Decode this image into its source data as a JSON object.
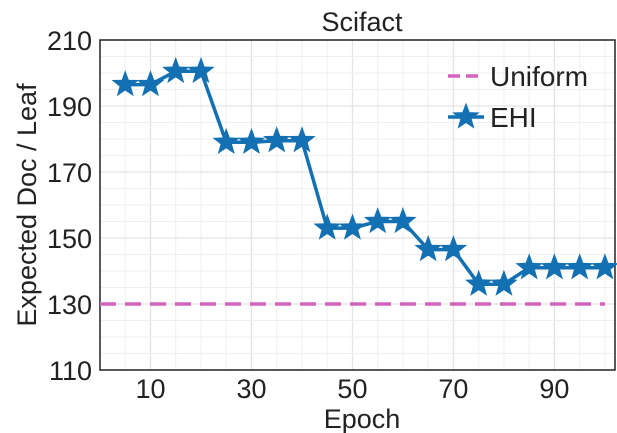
{
  "chart_data": {
    "type": "line",
    "title": "Scifact",
    "xlabel": "Epoch",
    "ylabel": "Expected Doc / Leaf",
    "xlim": [
      0,
      102
    ],
    "ylim": [
      110,
      210
    ],
    "xticks": [
      10,
      30,
      50,
      70,
      90
    ],
    "yticks": [
      110,
      130,
      150,
      170,
      190,
      210
    ],
    "x_tick_labels": [
      "10",
      "30",
      "50",
      "70",
      "90"
    ],
    "y_tick_labels": [
      "110",
      "130",
      "150",
      "170",
      "190",
      "210"
    ],
    "grid": true,
    "legend_position": "top-right",
    "series": [
      {
        "name": "Uniform",
        "style": "dashed",
        "marker": "none",
        "color": "#d463bd",
        "x": [
          0,
          100
        ],
        "y": [
          130,
          130
        ]
      },
      {
        "name": "EHI",
        "style": "solid",
        "marker": "star",
        "color": "#1270b3",
        "x": [
          5,
          10,
          15,
          20,
          25,
          30,
          35,
          40,
          45,
          50,
          55,
          60,
          65,
          70,
          75,
          80,
          85,
          90,
          95,
          100
        ],
        "y": [
          196.5,
          196.5,
          200.5,
          200.5,
          179,
          179,
          179.5,
          179.5,
          153,
          153,
          155,
          155,
          146.5,
          146.5,
          136,
          136,
          141,
          141,
          141,
          141
        ]
      }
    ]
  }
}
